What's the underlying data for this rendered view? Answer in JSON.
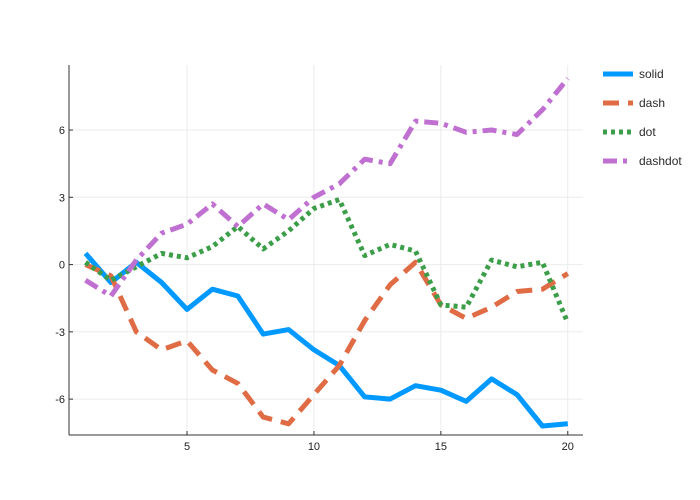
{
  "chart_data": {
    "type": "line",
    "title": "",
    "xlabel": "",
    "ylabel": "",
    "x": [
      1,
      2,
      3,
      4,
      5,
      6,
      7,
      8,
      9,
      10,
      11,
      12,
      13,
      14,
      15,
      16,
      17,
      18,
      19,
      20
    ],
    "xlim": [
      0.35,
      20.6
    ],
    "ylim": [
      -7.6,
      8.9
    ],
    "xticks": [
      5,
      10,
      15,
      20
    ],
    "xtick_labels": [
      "5",
      "10",
      "15",
      "20"
    ],
    "yticks": [
      -6,
      -3,
      0,
      3,
      6
    ],
    "ytick_labels": [
      "-6",
      "-3",
      "0",
      "3",
      "6"
    ],
    "grid": true,
    "legend_position": "top-right",
    "series": [
      {
        "name": "solid",
        "color": "#0099ff",
        "dash": "solid",
        "values": [
          0.5,
          -0.8,
          0.1,
          -0.8,
          -2.0,
          -1.1,
          -1.4,
          -3.1,
          -2.9,
          -3.8,
          -4.5,
          -5.9,
          -6.0,
          -5.4,
          -5.6,
          -6.1,
          -5.1,
          -5.8,
          -7.2,
          -7.1
        ]
      },
      {
        "name": "dash",
        "color": "#e06c45",
        "dash": "dash",
        "values": [
          0.0,
          -0.5,
          -3.0,
          -3.8,
          -3.4,
          -4.7,
          -5.3,
          -6.8,
          -7.1,
          -5.8,
          -4.5,
          -2.5,
          -0.9,
          0.1,
          -1.8,
          -2.4,
          -1.9,
          -1.2,
          -1.1,
          -0.4
        ]
      },
      {
        "name": "dot",
        "color": "#3d9e4a",
        "dash": "dot",
        "values": [
          0.1,
          -0.7,
          -0.1,
          0.5,
          0.3,
          0.8,
          1.7,
          0.7,
          1.5,
          2.5,
          2.9,
          0.4,
          0.9,
          0.6,
          -1.8,
          -1.9,
          0.2,
          -0.1,
          0.1,
          -2.6
        ]
      },
      {
        "name": "dashdot",
        "color": "#c070d0",
        "dash": "dashdot",
        "values": [
          -0.7,
          -1.4,
          0.2,
          1.4,
          1.8,
          2.7,
          1.7,
          2.7,
          2.0,
          3.0,
          3.6,
          4.7,
          4.5,
          6.4,
          6.3,
          5.9,
          6.0,
          5.8,
          6.9,
          8.3
        ]
      }
    ]
  }
}
